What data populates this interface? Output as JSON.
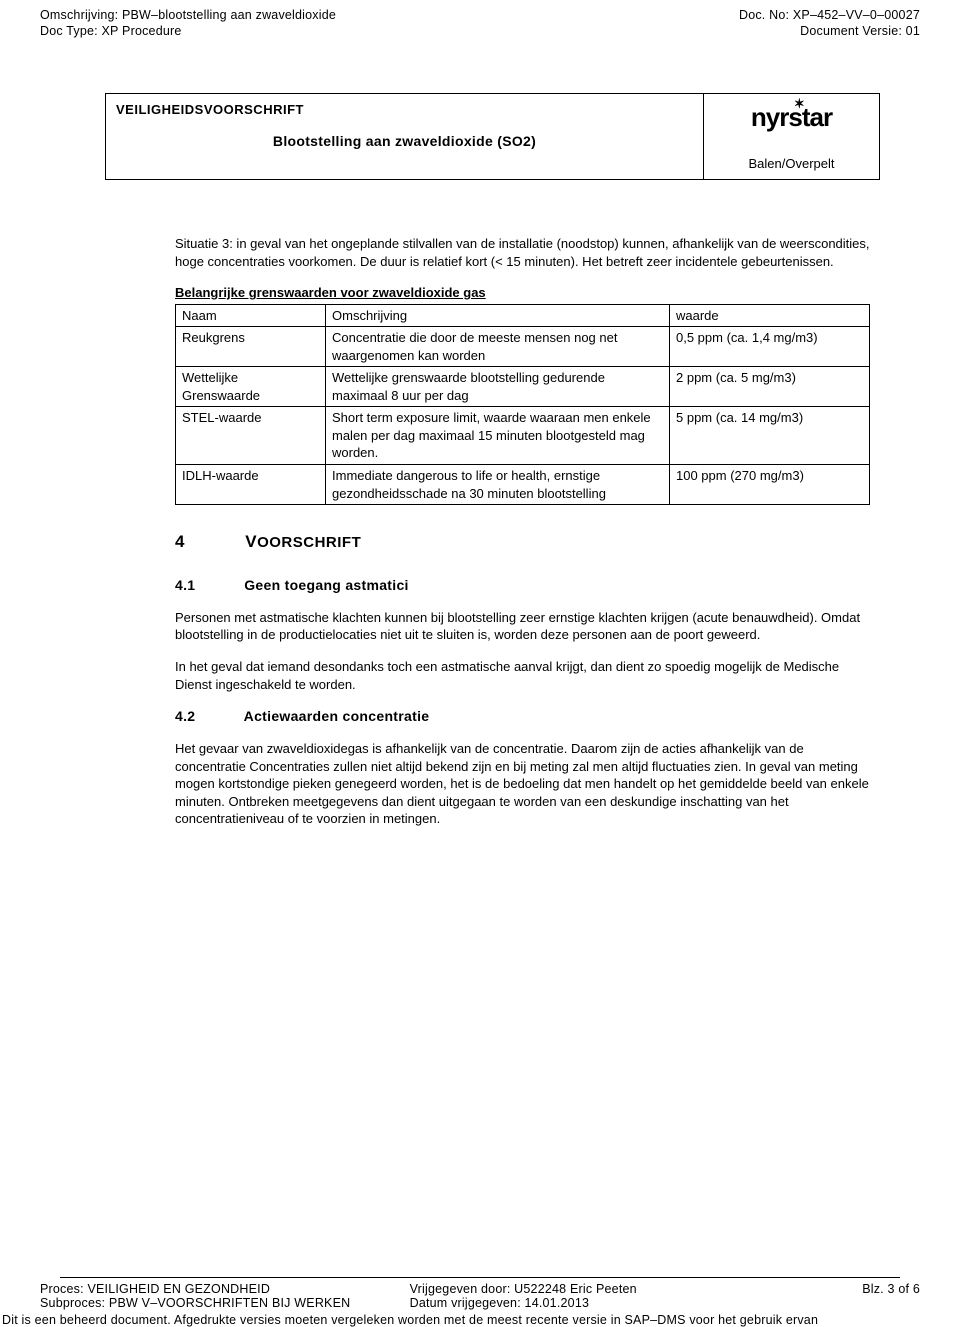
{
  "header": {
    "omschrijving_label": "Omschrijving: PBW–blootstelling aan zwaveldioxide",
    "doctype_label": "Doc Type: XP Procedure",
    "docno_label": "Doc. No: XP–452–VV–0–00027",
    "docversie_label": "Document Versie: 01"
  },
  "titlebox": {
    "heading": "VEILIGHEIDSVOORSCHRIFT",
    "subheading": "Blootstelling aan zwaveldioxide (SO2)",
    "logo_text": "nyrstar",
    "location": "Balen/Overpelt"
  },
  "situation": "Situatie 3: in geval van het ongeplande stilvallen van de installatie (noodstop) kunnen, afhankelijk van de weerscondities, hoge concentraties voorkomen. De duur is relatief kort (< 15 minuten). Het betreft zeer incidentele gebeurtenissen.",
  "table": {
    "caption": "Belangrijke grenswaarden voor zwaveldioxide gas",
    "columns": [
      "Naam",
      "Omschrijving",
      "waarde"
    ],
    "rows": [
      [
        "Reukgrens",
        "Concentratie die door de meeste mensen nog net waargenomen kan worden",
        "0,5 ppm (ca. 1,4 mg/m3)"
      ],
      [
        "Wettelijke Grenswaarde",
        "Wettelijke grenswaarde blootstelling gedurende maximaal 8 uur per dag",
        "2 ppm (ca. 5 mg/m3)"
      ],
      [
        "STEL-waarde",
        "Short term exposure limit, waarde waaraan men enkele malen per dag maximaal 15 minuten blootgesteld mag worden.",
        "5 ppm (ca. 14 mg/m3)"
      ],
      [
        "IDLH-waarde",
        "Immediate dangerous to life or health, ernstige gezondheidsschade na 30 minuten blootstelling",
        "100 ppm (270 mg/m3)"
      ]
    ]
  },
  "sec4": {
    "num": "4",
    "title_big": "V",
    "title_rest": "OORSCHRIFT"
  },
  "sec41": {
    "num": "4.1",
    "title": "Geen toegang astmatici",
    "p1": "Personen met astmatische klachten kunnen bij blootstelling zeer ernstige klachten krijgen (acute benauwdheid). Omdat blootstelling in de productielocaties niet uit te sluiten is, worden deze personen aan de poort geweerd.",
    "p2": "In het geval dat iemand desondanks toch een astmatische aanval krijgt, dan dient zo spoedig mogelijk de Medische Dienst ingeschakeld te worden."
  },
  "sec42": {
    "num": "4.2",
    "title": "Actiewaarden concentratie",
    "p1": "Het gevaar van zwaveldioxidegas is afhankelijk van de concentratie. Daarom zijn de acties afhankelijk van de concentratie Concentraties zullen niet altijd bekend zijn en bij meting zal men altijd fluctuaties zien. In geval van meting mogen kortstondige pieken genegeerd worden, het is de bedoeling dat men handelt op het gemiddelde beeld van enkele minuten. Ontbreken meetgegevens dan dient uitgegaan te worden van een deskundige inschatting van het concentratieniveau of te voorzien in metingen."
  },
  "footer": {
    "proces": "Proces: VEILIGHEID EN GEZONDHEID",
    "subproces": "Subproces: PBW V–VOORSCHRIFTEN BIJ WERKEN",
    "vrijgegeven": "Vrijgegeven door: U522248 Eric Peeten",
    "datum": "Datum vrijgegeven: 14.01.2013",
    "page": "Blz. 3 of 6",
    "note": "Dit is een beheerd document. Afgedrukte versies moeten vergeleken worden met de meest recente versie in SAP–DMS voor het gebruik ervan"
  }
}
